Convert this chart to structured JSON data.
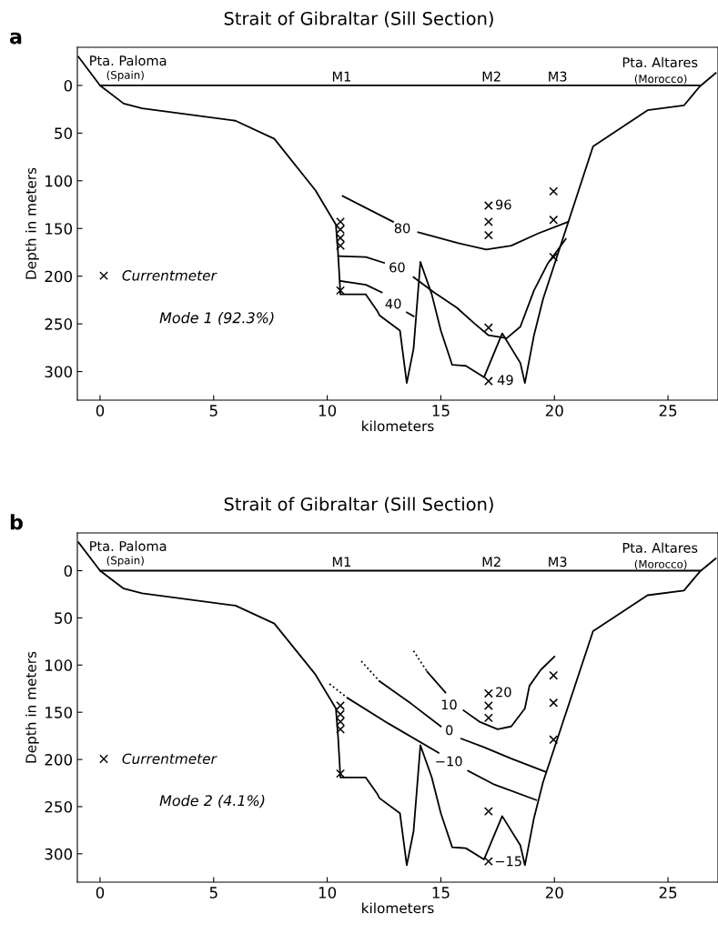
{
  "chart_data": [
    {
      "type": "line",
      "title": "Strait of Gibraltar (Sill Section)",
      "xlabel": "kilometers",
      "ylabel": "Depth in meters",
      "xlim": [
        -1,
        27.2
      ],
      "ylim": [
        330,
        -40
      ],
      "xticks": [
        0,
        5,
        10,
        15,
        20,
        25
      ],
      "yticks": [
        0,
        50,
        100,
        150,
        200,
        250,
        300
      ],
      "legend": "left",
      "grid": false,
      "series": [
        {
          "color": "#000000",
          "x": [
            -0.95,
            0,
            1.04,
            1.85,
            5.96,
            7.67,
            9.48,
            10.38,
            10.48,
            10.58,
            11.69,
            12.19,
            12.3,
            13.2,
            13.5,
            13.8,
            14.1,
            14.6,
            15.0,
            15.5,
            16.1,
            16.9,
            17.7,
            18.5,
            18.7,
            19.1,
            19.5,
            21.7,
            24.1,
            25.7,
            26.4,
            27.1
          ],
          "values": [
            -30,
            0,
            19,
            24,
            37,
            56,
            110,
            146,
            177,
            219,
            219,
            236,
            241,
            257,
            312,
            276,
            185,
            219,
            257,
            293,
            294,
            306,
            260,
            291,
            312,
            262,
            224,
            64,
            26,
            21,
            1,
            -13
          ]
        },
        {
          "color": "#000000",
          "x": [
            0,
            26.4
          ],
          "values": [
            0,
            0
          ]
        },
        {
          "color": "#000000",
          "x": [
            10.68,
            12.9,
            13.45,
            14.0,
            15.7,
            17.0,
            18.1,
            19.3,
            20.6
          ],
          "values": [
            116,
            143,
            null,
            154,
            165,
            172,
            168,
            155,
            143
          ]
        },
        {
          "color": "#000000",
          "x": [
            10.48,
            11.7,
            12.5,
            13.2,
            13.8,
            14.7,
            15.7,
            16.5,
            17.1,
            17.9,
            18.5,
            19.1,
            19.7,
            20.5
          ],
          "values": [
            179,
            180,
            186,
            null,
            201,
            217,
            233,
            250,
            262,
            265,
            253,
            215,
            187,
            161
          ]
        },
        {
          "color": "#000000",
          "x": [
            10.58,
            11.7,
            12.4,
            13.0,
            13.5,
            13.8
          ],
          "values": [
            205,
            209,
            217,
            null,
            238,
            242
          ]
        },
        {
          "type": "scatter",
          "name": "Currentmeter",
          "color": "#000000",
          "marker": "cross",
          "x": [
            10.58,
            10.58,
            10.58,
            10.58,
            10.58,
            17.1,
            17.1,
            17.1,
            17.1,
            17.1,
            19.96,
            19.96,
            19.96
          ],
          "values": [
            143,
            151,
            160,
            168,
            215,
            126,
            143,
            157,
            254,
            310,
            111,
            141,
            180
          ]
        }
      ],
      "annotations": [
        "a",
        "Mode 1 (92.3%)",
        "Pta. Paloma",
        "(Spain)",
        "Pta. Altares",
        "(Morocco)",
        "M1",
        "M2",
        "M3",
        "80",
        "60",
        "40",
        "96",
        "49"
      ]
    },
    {
      "type": "line",
      "title": "Strait of Gibraltar (Sill Section)",
      "xlabel": "kilometers",
      "ylabel": "Depth in meters",
      "xlim": [
        -1,
        27.2
      ],
      "ylim": [
        330,
        -40
      ],
      "xticks": [
        0,
        5,
        10,
        15,
        20,
        25
      ],
      "yticks": [
        0,
        50,
        100,
        150,
        200,
        250,
        300
      ],
      "legend": "left",
      "grid": false,
      "series": [
        {
          "color": "#000000",
          "x": [
            -0.95,
            0,
            1.04,
            1.85,
            5.96,
            7.67,
            9.48,
            10.38,
            10.48,
            10.58,
            11.69,
            12.19,
            12.3,
            13.2,
            13.5,
            13.8,
            14.1,
            14.6,
            15.0,
            15.5,
            16.1,
            16.9,
            17.7,
            18.5,
            18.7,
            19.1,
            19.5,
            21.7,
            24.1,
            25.7,
            26.4,
            27.1
          ],
          "values": [
            -30,
            0,
            19,
            24,
            37,
            56,
            110,
            146,
            177,
            219,
            219,
            236,
            241,
            257,
            312,
            276,
            185,
            219,
            257,
            293,
            294,
            306,
            260,
            291,
            312,
            262,
            224,
            64,
            26,
            21,
            1,
            -13
          ]
        },
        {
          "color": "#000000",
          "x": [
            0,
            26.4
          ],
          "values": [
            0,
            0
          ]
        },
        {
          "color": "#000000",
          "line_style": "dotted",
          "x": [
            13.8,
            14.4
          ],
          "values": [
            85,
            107
          ]
        },
        {
          "color": "#000000",
          "x": [
            14.4,
            15.2,
            15.4,
            16.0,
            16.7,
            17.5,
            18.1,
            18.7,
            18.9,
            19.4,
            20.0
          ],
          "values": [
            107,
            129,
            null,
            148,
            160,
            168,
            165,
            146,
            122,
            105,
            91
          ]
        },
        {
          "color": "#000000",
          "line_style": "dotted",
          "x": [
            11.5,
            12.3
          ],
          "values": [
            96,
            117
          ]
        },
        {
          "color": "#000000",
          "x": [
            12.3,
            13.7,
            15.0,
            15.5,
            15.9,
            16.9,
            18.1,
            19.6
          ],
          "values": [
            117,
            141,
            165,
            null,
            178,
            187,
            199,
            213
          ]
        },
        {
          "color": "#000000",
          "line_style": "dotted",
          "x": [
            10.1,
            10.9
          ],
          "values": [
            120,
            135
          ]
        },
        {
          "color": "#000000",
          "x": [
            10.9,
            12.7,
            14.9,
            15.5,
            16.2,
            17.3,
            19.2
          ],
          "values": [
            135,
            162,
            193,
            null,
            212,
            226,
            243
          ]
        },
        {
          "type": "scatter",
          "name": "Currentmeter",
          "color": "#000000",
          "marker": "cross",
          "x": [
            10.58,
            10.58,
            10.58,
            10.58,
            10.58,
            17.1,
            17.1,
            17.1,
            17.1,
            17.1,
            19.96,
            19.96,
            19.96
          ],
          "values": [
            143,
            152,
            160,
            168,
            215,
            130,
            143,
            156,
            255,
            308,
            111,
            140,
            179
          ]
        }
      ],
      "annotations": [
        "b",
        "Mode 2 (4.1%)",
        "Pta. Paloma",
        "(Spain)",
        "Pta. Altares",
        "(Morocco)",
        "M1",
        "M2",
        "M3",
        "10",
        "0",
        "−10",
        "20",
        "−15"
      ]
    }
  ]
}
